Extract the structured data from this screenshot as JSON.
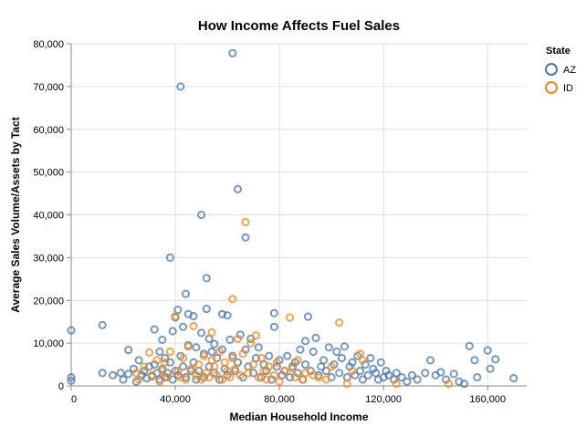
{
  "chart_data": {
    "type": "scatter",
    "title": "How Income Affects Fuel Sales",
    "xlabel": "Median Household Income",
    "ylabel": "Average Sales Volume/Assets by Tact",
    "xlim": [
      0,
      175000
    ],
    "ylim": [
      0,
      80000
    ],
    "x_ticks": [
      0,
      40000,
      80000,
      120000,
      160000
    ],
    "x_tick_labels": [
      "0",
      "40,000",
      "80,000",
      "120,000",
      "160,000"
    ],
    "y_ticks": [
      0,
      10000,
      20000,
      30000,
      40000,
      50000,
      60000,
      70000,
      80000
    ],
    "y_tick_labels": [
      "0",
      "10,000",
      "20,000",
      "30,000",
      "40,000",
      "50,000",
      "60,000",
      "70,000",
      "80,000"
    ],
    "grid": true,
    "legend_position": "right",
    "legend_title": "State",
    "series": [
      {
        "name": "AZ",
        "color": "#4c78a8",
        "points": [
          [
            0,
            13000
          ],
          [
            0,
            2000
          ],
          [
            0,
            1200
          ],
          [
            12000,
            14200
          ],
          [
            12000,
            3000
          ],
          [
            16000,
            2500
          ],
          [
            19000,
            3000
          ],
          [
            20000,
            1500
          ],
          [
            22000,
            2800
          ],
          [
            22000,
            8400
          ],
          [
            24000,
            4000
          ],
          [
            25000,
            1000
          ],
          [
            26000,
            6000
          ],
          [
            27000,
            2500
          ],
          [
            28000,
            3500
          ],
          [
            29000,
            1800
          ],
          [
            30000,
            4500
          ],
          [
            31000,
            2200
          ],
          [
            32000,
            5000
          ],
          [
            32000,
            13200
          ],
          [
            33000,
            3000
          ],
          [
            34000,
            1500
          ],
          [
            34000,
            8000
          ],
          [
            35000,
            10800
          ],
          [
            35000,
            4000
          ],
          [
            36000,
            2000
          ],
          [
            36000,
            6500
          ],
          [
            37000,
            3000
          ],
          [
            38000,
            5500
          ],
          [
            38000,
            30000
          ],
          [
            39000,
            1500
          ],
          [
            39000,
            12800
          ],
          [
            40000,
            3500
          ],
          [
            40000,
            16000
          ],
          [
            41000,
            17800
          ],
          [
            41000,
            2500
          ],
          [
            42000,
            70000
          ],
          [
            42000,
            7000
          ],
          [
            43000,
            4500
          ],
          [
            43000,
            13800
          ],
          [
            44000,
            21500
          ],
          [
            44000,
            2000
          ],
          [
            45000,
            16800
          ],
          [
            45000,
            9500
          ],
          [
            46000,
            3500
          ],
          [
            47000,
            16300
          ],
          [
            47000,
            5500
          ],
          [
            48000,
            9000
          ],
          [
            48000,
            1500
          ],
          [
            49000,
            3500
          ],
          [
            50000,
            40000
          ],
          [
            50000,
            12400
          ],
          [
            51000,
            7500
          ],
          [
            51000,
            2000
          ],
          [
            52000,
            25200
          ],
          [
            52000,
            18000
          ],
          [
            53000,
            4500
          ],
          [
            53000,
            11000
          ],
          [
            54000,
            8000
          ],
          [
            55000,
            3000
          ],
          [
            55000,
            9800
          ],
          [
            56000,
            6500
          ],
          [
            57000,
            1500
          ],
          [
            58000,
            16800
          ],
          [
            58000,
            8500
          ],
          [
            59000,
            4000
          ],
          [
            60000,
            16500
          ],
          [
            60000,
            2500
          ],
          [
            61000,
            10800
          ],
          [
            62000,
            77800
          ],
          [
            62000,
            7000
          ],
          [
            63000,
            3500
          ],
          [
            64000,
            46000
          ],
          [
            64000,
            5500
          ],
          [
            65000,
            12000
          ],
          [
            66000,
            2000
          ],
          [
            67000,
            34700
          ],
          [
            67000,
            8500
          ],
          [
            68000,
            4500
          ],
          [
            69000,
            11000
          ],
          [
            70000,
            3000
          ],
          [
            71000,
            6500
          ],
          [
            72000,
            9000
          ],
          [
            73000,
            2000
          ],
          [
            74000,
            5000
          ],
          [
            75000,
            3500
          ],
          [
            76000,
            7000
          ],
          [
            77000,
            1500
          ],
          [
            78000,
            17000
          ],
          [
            78000,
            13800
          ],
          [
            79000,
            4500
          ],
          [
            80000,
            6000
          ],
          [
            81000,
            2500
          ],
          [
            82000,
            3500
          ],
          [
            83000,
            7000
          ],
          [
            84000,
            2000
          ],
          [
            85000,
            4500
          ],
          [
            86000,
            5500
          ],
          [
            87000,
            3000
          ],
          [
            88000,
            8500
          ],
          [
            89000,
            1500
          ],
          [
            90000,
            10500
          ],
          [
            90000,
            5000
          ],
          [
            91000,
            16200
          ],
          [
            92000,
            3500
          ],
          [
            93000,
            8000
          ],
          [
            94000,
            11200
          ],
          [
            95000,
            2500
          ],
          [
            96000,
            4500
          ],
          [
            97000,
            6000
          ],
          [
            98000,
            3500
          ],
          [
            99000,
            9000
          ],
          [
            100000,
            2000
          ],
          [
            101000,
            5000
          ],
          [
            102000,
            8000
          ],
          [
            103000,
            3000
          ],
          [
            104000,
            6500
          ],
          [
            105000,
            9200
          ],
          [
            106000,
            2000
          ],
          [
            107000,
            4500
          ],
          [
            108000,
            5500
          ],
          [
            109000,
            2500
          ],
          [
            110000,
            7000
          ],
          [
            111000,
            3500
          ],
          [
            112000,
            1500
          ],
          [
            113000,
            5000
          ],
          [
            114000,
            2500
          ],
          [
            115000,
            6500
          ],
          [
            116000,
            4000
          ],
          [
            117000,
            3000
          ],
          [
            118000,
            1500
          ],
          [
            119000,
            5500
          ],
          [
            120000,
            2000
          ],
          [
            121000,
            3500
          ],
          [
            122000,
            2500
          ],
          [
            124000,
            1500
          ],
          [
            125000,
            3000
          ],
          [
            127000,
            2000
          ],
          [
            129000,
            1000
          ],
          [
            131000,
            2500
          ],
          [
            133000,
            1500
          ],
          [
            136000,
            3000
          ],
          [
            138000,
            6000
          ],
          [
            140000,
            2500
          ],
          [
            142000,
            3200
          ],
          [
            144000,
            1500
          ],
          [
            147000,
            2800
          ],
          [
            149000,
            1000
          ],
          [
            151000,
            500
          ],
          [
            153000,
            9300
          ],
          [
            155000,
            6000
          ],
          [
            156000,
            2000
          ],
          [
            160000,
            8300
          ],
          [
            161000,
            4000
          ],
          [
            163000,
            6200
          ],
          [
            170000,
            1800
          ]
        ]
      },
      {
        "name": "ID",
        "color": "#f58518",
        "points": [
          [
            25000,
            3000
          ],
          [
            26000,
            1500
          ],
          [
            28000,
            4500
          ],
          [
            30000,
            7800
          ],
          [
            31000,
            2500
          ],
          [
            33000,
            6000
          ],
          [
            34000,
            1000
          ],
          [
            35000,
            3500
          ],
          [
            36000,
            5500
          ],
          [
            37000,
            2000
          ],
          [
            38000,
            8000
          ],
          [
            40000,
            16300
          ],
          [
            41000,
            3500
          ],
          [
            42000,
            2000
          ],
          [
            43000,
            6500
          ],
          [
            44000,
            1500
          ],
          [
            45000,
            9200
          ],
          [
            46000,
            4000
          ],
          [
            47000,
            14000
          ],
          [
            48000,
            2500
          ],
          [
            49000,
            5000
          ],
          [
            50000,
            1500
          ],
          [
            51000,
            7000
          ],
          [
            52000,
            3000
          ],
          [
            53000,
            2000
          ],
          [
            54000,
            12500
          ],
          [
            54000,
            6000
          ],
          [
            55000,
            4500
          ],
          [
            56000,
            2500
          ],
          [
            57000,
            8000
          ],
          [
            58000,
            1500
          ],
          [
            59000,
            5500
          ],
          [
            60000,
            3500
          ],
          [
            61000,
            2000
          ],
          [
            62000,
            20300
          ],
          [
            62000,
            6500
          ],
          [
            63000,
            4000
          ],
          [
            64000,
            11000
          ],
          [
            65000,
            2500
          ],
          [
            66000,
            7500
          ],
          [
            67000,
            38300
          ],
          [
            68000,
            3000
          ],
          [
            69000,
            10000
          ],
          [
            70000,
            5000
          ],
          [
            71000,
            11800
          ],
          [
            72000,
            2000
          ],
          [
            73000,
            6500
          ],
          [
            74000,
            3500
          ],
          [
            75000,
            1500
          ],
          [
            76000,
            4500
          ],
          [
            78000,
            2500
          ],
          [
            79000,
            5500
          ],
          [
            80000,
            1000
          ],
          [
            82000,
            3500
          ],
          [
            84000,
            16000
          ],
          [
            85000,
            4000
          ],
          [
            86000,
            2000
          ],
          [
            87000,
            6000
          ],
          [
            89000,
            1500
          ],
          [
            90000,
            3000
          ],
          [
            93000,
            2500
          ],
          [
            95000,
            2000
          ],
          [
            98000,
            1500
          ],
          [
            100000,
            4500
          ],
          [
            103000,
            14800
          ],
          [
            106000,
            500
          ],
          [
            108000,
            3500
          ],
          [
            111000,
            7500
          ],
          [
            112000,
            6000
          ],
          [
            125000,
            500
          ],
          [
            145000,
            500
          ]
        ]
      }
    ]
  }
}
